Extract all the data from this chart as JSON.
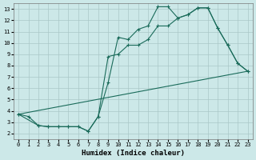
{
  "xlabel": "Humidex (Indice chaleur)",
  "bg_color": "#cce8e8",
  "grid_color": "#aac8c8",
  "line_color": "#1a6b5a",
  "xlim": [
    -0.5,
    23.5
  ],
  "ylim": [
    1.5,
    13.5
  ],
  "xticks": [
    0,
    1,
    2,
    3,
    4,
    5,
    6,
    7,
    8,
    9,
    10,
    11,
    12,
    13,
    14,
    15,
    16,
    17,
    18,
    19,
    20,
    21,
    22,
    23
  ],
  "yticks": [
    2,
    3,
    4,
    5,
    6,
    7,
    8,
    9,
    10,
    11,
    12,
    13
  ],
  "line1_x": [
    0,
    1,
    2,
    3,
    4,
    5,
    6,
    7,
    8,
    9,
    10,
    11,
    12,
    13,
    14,
    15,
    16,
    17,
    18,
    19,
    20,
    21,
    22,
    23
  ],
  "line1_y": [
    3.7,
    3.5,
    2.7,
    2.6,
    2.6,
    2.6,
    2.6,
    2.2,
    3.5,
    6.5,
    10.5,
    10.3,
    11.2,
    11.5,
    13.2,
    13.2,
    12.2,
    12.5,
    13.1,
    13.1,
    11.3,
    9.8,
    8.2,
    7.5
  ],
  "line2_x": [
    0,
    2,
    3,
    4,
    5,
    6,
    7,
    8,
    9,
    10,
    11,
    12,
    13,
    14,
    15,
    16,
    17,
    18,
    19,
    20,
    21,
    22,
    23
  ],
  "line2_y": [
    3.7,
    2.7,
    2.6,
    2.6,
    2.6,
    2.6,
    2.2,
    3.5,
    8.8,
    9.0,
    9.8,
    9.8,
    10.3,
    11.5,
    11.5,
    12.2,
    12.5,
    13.1,
    13.1,
    11.3,
    9.8,
    8.2,
    7.5
  ],
  "line3_x": [
    0,
    23
  ],
  "line3_y": [
    3.7,
    7.5
  ]
}
